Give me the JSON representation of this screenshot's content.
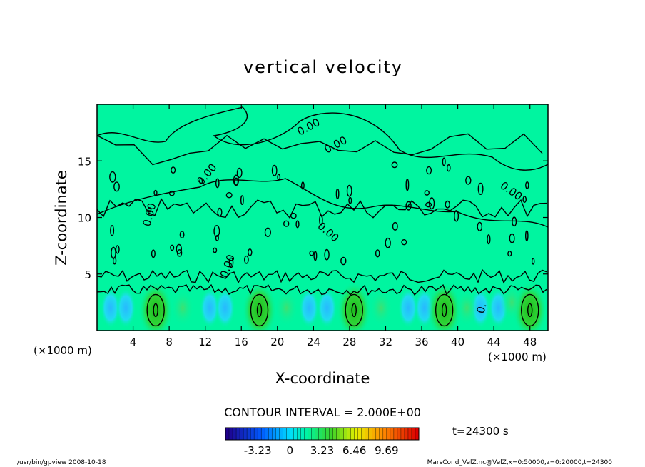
{
  "chart_data": {
    "type": "heatmap",
    "title": "vertical velocity",
    "xlabel": "X-coordinate",
    "ylabel": "Z-coordinate",
    "x_unit_left": "(×1000 m)",
    "x_unit_right": "(×1000 m)",
    "xlim": [
      0,
      50
    ],
    "ylim": [
      0,
      20
    ],
    "x_ticks": [
      "4",
      "8",
      "12",
      "16",
      "20",
      "24",
      "28",
      "32",
      "36",
      "40",
      "44",
      "48"
    ],
    "y_ticks": [
      "5",
      "10",
      "15"
    ],
    "contour_labels": [
      "0.00",
      "0.00",
      "0.00",
      "0.00",
      "0.00",
      "0.00",
      "0.00"
    ],
    "inner_contour_label": "0.",
    "contour_interval": "CONTOUR INTERVAL = 2.000E+00",
    "time_label": "t=24300 s",
    "colorbar_ticks": [
      "-3.23",
      "0",
      "3.23",
      "6.46",
      "9.69"
    ],
    "colorbar_range": [
      -6.46,
      12.92
    ],
    "updraft_cores_x": [
      6.5,
      18,
      28.5,
      38.5,
      48
    ]
  },
  "footer": {
    "left": "/usr/bin/gpview   2008-10-18",
    "right": "MarsCond_VelZ.nc@VelZ,x=0:50000,z=0:20000,t=24300"
  },
  "colors": {
    "background_field": "#00f5a0",
    "updraft": "#22cc22",
    "downdraft": "#22c8ff"
  }
}
